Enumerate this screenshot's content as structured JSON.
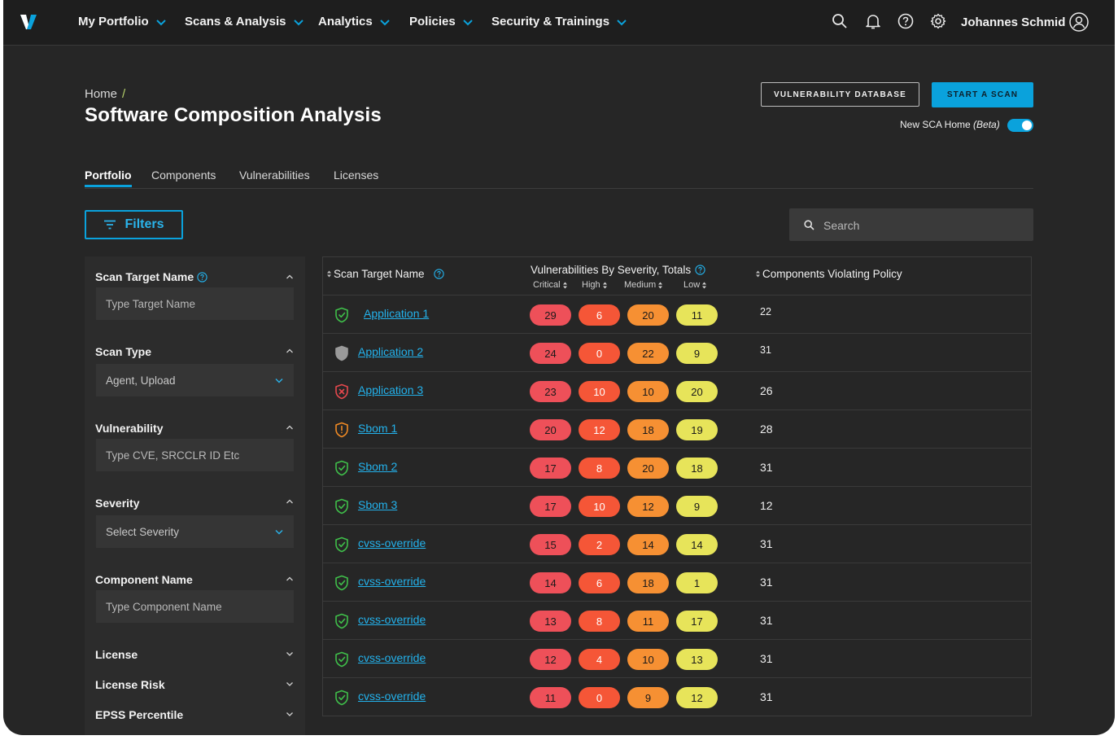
{
  "nav": {
    "items": [
      "My Portfolio",
      "Scans & Analysis",
      "Analytics",
      "Policies",
      "Security & Trainings"
    ],
    "user": "Johannes Schmid"
  },
  "header": {
    "breadcrumb_home": "Home",
    "breadcrumb_sep": "/",
    "title": "Software Composition Analysis",
    "btn_vuln_db": "VULNERABILITY DATABASE",
    "btn_start_scan": "START A SCAN",
    "toggle_label": "New SCA Home",
    "toggle_label_em": "(Beta)",
    "toggle_on": true
  },
  "tabs": [
    "Portfolio",
    "Components",
    "Vulnerabilities",
    "Licenses"
  ],
  "toolbar": {
    "filters_label": "Filters",
    "search_placeholder": "Search"
  },
  "sidebar": {
    "scan_target_name": {
      "label": "Scan Target Name",
      "placeholder": "Type Target Name"
    },
    "scan_type": {
      "label": "Scan Type",
      "value": "Agent, Upload"
    },
    "vulnerability": {
      "label": "Vulnerability",
      "placeholder": "Type CVE, SRCCLR ID Etc"
    },
    "severity": {
      "label": "Severity",
      "value": "Select Severity"
    },
    "component_name": {
      "label": "Component Name",
      "placeholder": "Type Component Name"
    },
    "license": {
      "label": "License"
    },
    "license_risk": {
      "label": "License Risk"
    },
    "epss": {
      "label": "EPSS Percentile"
    }
  },
  "table": {
    "col_name": "Scan Target Name",
    "col_vuln": "Vulnerabilities By Severity, Totals",
    "col_comp": "Components Violating Policy",
    "sev_critical": "Critical",
    "sev_high": "High",
    "sev_medium": "Medium",
    "sev_low": "Low",
    "rows": [
      {
        "status": "ok",
        "name": "Application 1",
        "critical": "29",
        "high": "6",
        "medium": "20",
        "low": "11",
        "components": "22"
      },
      {
        "status": "neutral",
        "name": "Application 2",
        "critical": "24",
        "high": "0",
        "medium": "22",
        "low": "9",
        "components": "31"
      },
      {
        "status": "error",
        "name": "Application 3",
        "critical": "23",
        "high": "10",
        "medium": "10",
        "low": "20",
        "components": "26"
      },
      {
        "status": "warning",
        "name": "Sbom 1",
        "critical": "20",
        "high": "12",
        "medium": "18",
        "low": "19",
        "components": "28"
      },
      {
        "status": "ok",
        "name": "Sbom 2",
        "critical": "17",
        "high": "8",
        "medium": "20",
        "low": "18",
        "components": "31"
      },
      {
        "status": "ok",
        "name": "Sbom 3",
        "critical": "17",
        "high": "10",
        "medium": "12",
        "low": "9",
        "components": "12"
      },
      {
        "status": "ok",
        "name": "cvss-override",
        "critical": "15",
        "high": "2",
        "medium": "14",
        "low": "14",
        "components": "31"
      },
      {
        "status": "ok",
        "name": "cvss-override",
        "critical": "14",
        "high": "6",
        "medium": "18",
        "low": "1",
        "components": "31"
      },
      {
        "status": "ok",
        "name": "cvss-override",
        "critical": "13",
        "high": "8",
        "medium": "11",
        "low": "17",
        "components": "31"
      },
      {
        "status": "ok",
        "name": "cvss-override",
        "critical": "12",
        "high": "4",
        "medium": "10",
        "low": "13",
        "components": "31"
      },
      {
        "status": "ok",
        "name": "cvss-override",
        "critical": "11",
        "high": "0",
        "medium": "9",
        "low": "12",
        "components": "31"
      }
    ]
  },
  "colors": {
    "accent": "#0aa2dc",
    "critical": "#ee5059",
    "high": "#f55637",
    "medium": "#f69033",
    "low": "#e7e45a",
    "status_ok": "#3fbf4a",
    "status_error": "#e5484d",
    "status_warning": "#f08a24",
    "status_neutral": "#9a9a9a"
  }
}
